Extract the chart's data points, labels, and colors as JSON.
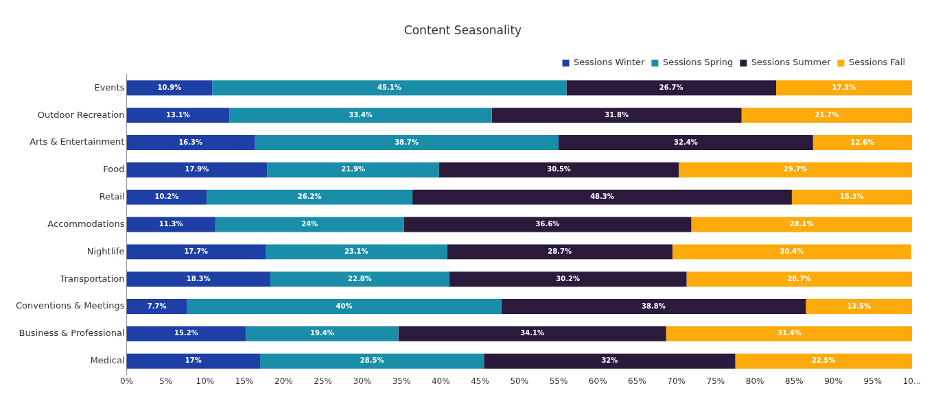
{
  "chart_data": {
    "type": "bar",
    "title": "Content Seasonality",
    "orientation": "horizontal",
    "stacked": true,
    "legend": "top right",
    "grid": false,
    "categories": [
      "Events",
      "Outdoor Recreation",
      "Arts & Entertainment",
      "Food",
      "Retail",
      "Accommodations",
      "Nightlife",
      "Transportation",
      "Conventions & Meetings",
      "Business & Professional",
      "Medical"
    ],
    "xlim": [
      0,
      100
    ],
    "xticks": [
      {
        "value": 0,
        "label": "0%"
      },
      {
        "value": 5,
        "label": "5%"
      },
      {
        "value": 10,
        "label": "10%"
      },
      {
        "value": 15,
        "label": "15%"
      },
      {
        "value": 20,
        "label": "20%"
      },
      {
        "value": 25,
        "label": "25%"
      },
      {
        "value": 30,
        "label": "30%"
      },
      {
        "value": 35,
        "label": "35%"
      },
      {
        "value": 40,
        "label": "40%"
      },
      {
        "value": 45,
        "label": "45%"
      },
      {
        "value": 50,
        "label": "50%"
      },
      {
        "value": 55,
        "label": "55%"
      },
      {
        "value": 60,
        "label": "60%"
      },
      {
        "value": 65,
        "label": "65%"
      },
      {
        "value": 70,
        "label": "70%"
      },
      {
        "value": 75,
        "label": "75%"
      },
      {
        "value": 80,
        "label": "80%"
      },
      {
        "value": 85,
        "label": "85%"
      },
      {
        "value": 90,
        "label": "90%"
      },
      {
        "value": 95,
        "label": "95%"
      },
      {
        "value": 100,
        "label": "10..."
      }
    ],
    "series": [
      {
        "name": "Sessions Winter",
        "color": "#1d3fa6",
        "values": [
          10.9,
          13.1,
          16.3,
          17.9,
          10.2,
          11.3,
          17.7,
          18.3,
          7.7,
          15.2,
          17
        ],
        "value_labels": [
          "10.9%",
          "13.1%",
          "16.3%",
          "17.9%",
          "10.2%",
          "11.3%",
          "17.7%",
          "18.3%",
          "7.7%",
          "15.2%",
          "17%"
        ]
      },
      {
        "name": "Sessions Spring",
        "color": "#1a8ea8",
        "values": [
          45.1,
          33.4,
          38.7,
          21.9,
          26.2,
          24,
          23.1,
          22.8,
          40,
          19.4,
          28.5
        ],
        "value_labels": [
          "45.1%",
          "33.4%",
          "38.7%",
          "21.9%",
          "26.2%",
          "24%",
          "23.1%",
          "22.8%",
          "40%",
          "19.4%",
          "28.5%"
        ]
      },
      {
        "name": "Sessions Summer",
        "color": "#2b1a3b",
        "values": [
          26.7,
          31.8,
          32.4,
          30.5,
          48.3,
          36.6,
          28.7,
          30.2,
          38.8,
          34.1,
          32
        ],
        "value_labels": [
          "26.7%",
          "31.8%",
          "32.4%",
          "30.5%",
          "48.3%",
          "36.6%",
          "28.7%",
          "30.2%",
          "38.8%",
          "34.1%",
          "32%"
        ]
      },
      {
        "name": "Sessions Fall",
        "color": "#fdaa0a",
        "values": [
          17.3,
          21.7,
          12.6,
          29.7,
          15.3,
          28.1,
          30.4,
          28.7,
          13.5,
          31.4,
          22.5
        ],
        "value_labels": [
          "17.3%",
          "21.7%",
          "12.6%",
          "29.7%",
          "15.3%",
          "28.1%",
          "30.4%",
          "28.7%",
          "13.5%",
          "31.4%",
          "22.5%"
        ]
      }
    ]
  }
}
